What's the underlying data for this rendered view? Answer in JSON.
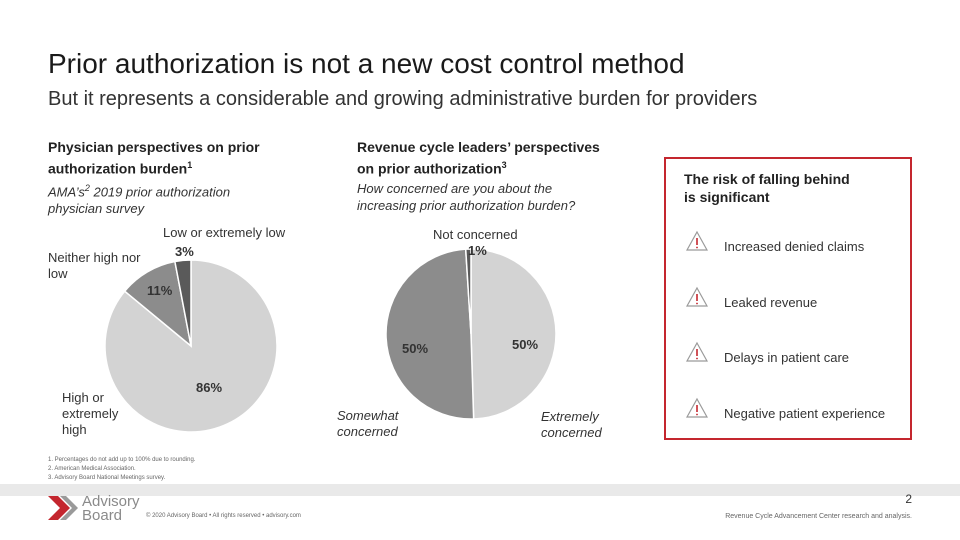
{
  "header": {
    "title": "Prior authorization is not a new cost control method",
    "subtitle": "But it represents a considerable and growing administrative burden for providers"
  },
  "left": {
    "heading_line1": "Physician perspectives on prior",
    "heading_line2": "authorization burden",
    "heading_sup": "1",
    "sub_line1_a": "AMA’s",
    "sub_line1_sup": "2",
    "sub_line1_b": " 2019 prior authorization",
    "sub_line2": "physician survey"
  },
  "middle": {
    "heading_line1": "Revenue cycle leaders’ perspectives",
    "heading_line2": "on prior authorization",
    "heading_sup": "3",
    "sub_line1": "How concerned are you about the",
    "sub_line2": "increasing prior authorization burden?"
  },
  "chart_data": [
    {
      "type": "pie",
      "slices": [
        {
          "label_line1": "High or",
          "label_line2": "extremely",
          "label_line3": "high",
          "value": 86,
          "value_label": "86%",
          "color": "#d3d3d3"
        },
        {
          "label_line1": "Neither high nor",
          "label_line2": "low",
          "value": 11,
          "value_label": "11%",
          "color": "#8c8c8c"
        },
        {
          "label_line1": "Low or extremely low",
          "value": 3,
          "value_label": "3%",
          "color": "#5a5a5a"
        }
      ]
    },
    {
      "type": "pie",
      "slices": [
        {
          "label_line1": "Extremely",
          "label_line2": "concerned",
          "value": 50,
          "value_label": "50%",
          "color": "#d3d3d3"
        },
        {
          "label_line1": "Somewhat",
          "label_line2": "concerned",
          "value": 50,
          "value_label": "50%",
          "color": "#8c8c8c"
        },
        {
          "label_line1": "Not concerned",
          "value": 1,
          "value_label": "1%",
          "color": "#5a5a5a"
        }
      ]
    }
  ],
  "risk": {
    "title_line1": "The risk of falling behind",
    "title_line2": "is significant",
    "items": [
      {
        "label": "Increased denied claims",
        "icon": "warning-icon"
      },
      {
        "label": "Leaked revenue",
        "icon": "warning-icon"
      },
      {
        "label": "Delays in patient care",
        "icon": "warning-icon"
      },
      {
        "label": "Negative patient experience",
        "icon": "warning-icon"
      }
    ],
    "border_color": "#c4262e"
  },
  "footnotes": [
    "1.  Percentages do not add up to 100% due to rounding.",
    "2.  American Medical Association.",
    "3.  Advisory Board National Meetings survey."
  ],
  "footer": {
    "logo_line1": "Advisory",
    "logo_line2": "Board",
    "copyright": "© 2020 Advisory Board • All rights reserved • advisory.com",
    "page_number": "2",
    "source": "Revenue Cycle Advancement Center research and analysis."
  }
}
